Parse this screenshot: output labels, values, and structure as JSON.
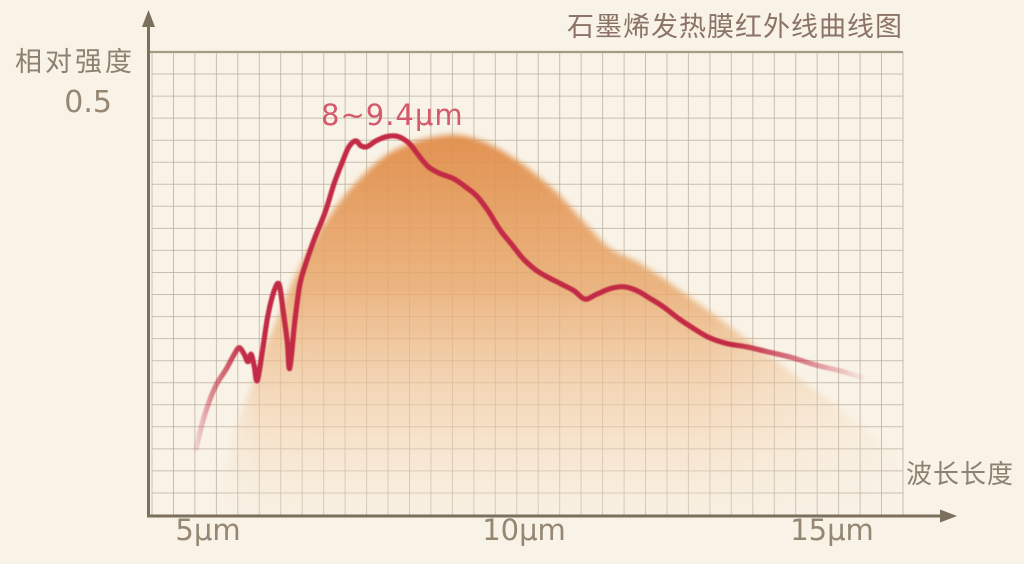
{
  "title": "石墨烯发热膜红外线曲线图",
  "y_axis": {
    "label": "相对强度",
    "tick": "0.5"
  },
  "x_axis": {
    "label": "波长长度",
    "ticks": [
      "5μm",
      "10μm",
      "15μm"
    ]
  },
  "annotation": "8~9.4μm",
  "colors": {
    "background": "#f8f1e3",
    "curve": "#c22c44",
    "annotation_text": "#d4596a",
    "fill_top": "#e08c48",
    "fill_mid": "#e8a96e",
    "fill_low": "#f2cda6",
    "fill_bottom": "#f8e8d6",
    "grid": "#bdb2a1",
    "grid_top_border": "#a59a86",
    "axis": "#7b6f5d",
    "label_text": "#8e8170",
    "tick_text": "#958772",
    "title_text": "#8b7366"
  },
  "chart_data": {
    "type": "line+area",
    "title": "石墨烯发热膜红外线曲线图",
    "xlabel": "波长长度",
    "ylabel": "相对强度",
    "x_unit": "μm",
    "x_ticks_um": [
      5,
      10,
      15
    ],
    "y_tick_labeled": 0.5,
    "xlim_um": [
      4.1,
      16.6
    ],
    "ylim": [
      0,
      0.55
    ],
    "grid": true,
    "legend": "none",
    "annotation": {
      "text": "8~9.4μm",
      "x_range_um": [
        8,
        9.4
      ]
    },
    "series": [
      {
        "name": "graphene-film-infrared-intensity",
        "style": "line",
        "color": "#c22c44",
        "points_um_intensity": [
          [
            4.81,
            0.081
          ],
          [
            4.9,
            0.11
          ],
          [
            5.02,
            0.138
          ],
          [
            5.14,
            0.159
          ],
          [
            5.29,
            0.177
          ],
          [
            5.42,
            0.195
          ],
          [
            5.5,
            0.203
          ],
          [
            5.58,
            0.195
          ],
          [
            5.64,
            0.186
          ],
          [
            5.69,
            0.195
          ],
          [
            5.74,
            0.181
          ],
          [
            5.79,
            0.163
          ],
          [
            5.87,
            0.198
          ],
          [
            5.96,
            0.242
          ],
          [
            6.06,
            0.272
          ],
          [
            6.14,
            0.28
          ],
          [
            6.2,
            0.25
          ],
          [
            6.27,
            0.211
          ],
          [
            6.31,
            0.178
          ],
          [
            6.39,
            0.234
          ],
          [
            6.47,
            0.279
          ],
          [
            6.57,
            0.306
          ],
          [
            6.71,
            0.336
          ],
          [
            6.88,
            0.368
          ],
          [
            7.02,
            0.402
          ],
          [
            7.15,
            0.428
          ],
          [
            7.26,
            0.447
          ],
          [
            7.37,
            0.454
          ],
          [
            7.45,
            0.448
          ],
          [
            7.55,
            0.447
          ],
          [
            7.69,
            0.454
          ],
          [
            7.85,
            0.459
          ],
          [
            8.01,
            0.46
          ],
          [
            8.14,
            0.456
          ],
          [
            8.25,
            0.449
          ],
          [
            8.38,
            0.436
          ],
          [
            8.54,
            0.422
          ],
          [
            8.73,
            0.414
          ],
          [
            8.94,
            0.408
          ],
          [
            9.13,
            0.398
          ],
          [
            9.31,
            0.387
          ],
          [
            9.49,
            0.369
          ],
          [
            9.68,
            0.346
          ],
          [
            9.86,
            0.329
          ],
          [
            10.05,
            0.311
          ],
          [
            10.26,
            0.297
          ],
          [
            10.46,
            0.288
          ],
          [
            10.67,
            0.28
          ],
          [
            10.87,
            0.272
          ],
          [
            11.04,
            0.262
          ],
          [
            11.23,
            0.268
          ],
          [
            11.46,
            0.275
          ],
          [
            11.67,
            0.277
          ],
          [
            11.88,
            0.272
          ],
          [
            12.08,
            0.263
          ],
          [
            12.31,
            0.252
          ],
          [
            12.55,
            0.238
          ],
          [
            12.79,
            0.226
          ],
          [
            13.04,
            0.215
          ],
          [
            13.32,
            0.208
          ],
          [
            13.64,
            0.204
          ],
          [
            13.97,
            0.198
          ],
          [
            14.36,
            0.191
          ],
          [
            14.74,
            0.182
          ],
          [
            15.13,
            0.175
          ],
          [
            15.48,
            0.167
          ]
        ]
      },
      {
        "name": "emission-band-gradient-area",
        "style": "area",
        "color": "#e08c48",
        "points_um_intensity": [
          [
            5.08,
            0.0
          ],
          [
            5.38,
            0.091
          ],
          [
            5.71,
            0.161
          ],
          [
            6.03,
            0.224
          ],
          [
            6.35,
            0.282
          ],
          [
            6.68,
            0.33
          ],
          [
            7.05,
            0.374
          ],
          [
            7.44,
            0.409
          ],
          [
            7.84,
            0.436
          ],
          [
            8.24,
            0.451
          ],
          [
            8.64,
            0.459
          ],
          [
            9.01,
            0.461
          ],
          [
            9.39,
            0.454
          ],
          [
            9.78,
            0.439
          ],
          [
            10.16,
            0.419
          ],
          [
            10.58,
            0.392
          ],
          [
            11.0,
            0.358
          ],
          [
            11.44,
            0.324
          ],
          [
            11.89,
            0.307
          ],
          [
            12.32,
            0.286
          ],
          [
            12.76,
            0.262
          ],
          [
            13.17,
            0.24
          ],
          [
            13.61,
            0.215
          ],
          [
            14.04,
            0.191
          ],
          [
            14.49,
            0.165
          ],
          [
            14.94,
            0.14
          ],
          [
            15.38,
            0.113
          ],
          [
            15.77,
            0.089
          ],
          [
            16.09,
            0.064
          ],
          [
            16.14,
            0.0
          ]
        ]
      }
    ]
  }
}
